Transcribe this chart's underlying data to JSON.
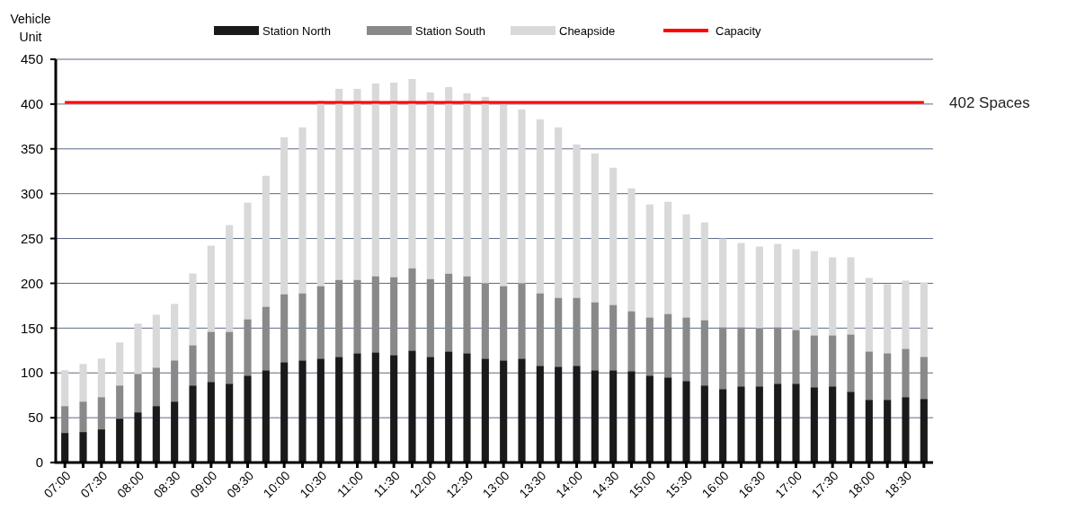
{
  "chart_data": {
    "type": "bar",
    "stacked": true,
    "ylabel": "Vehicle Unit",
    "categories": [
      "07:00",
      null,
      "07:30",
      null,
      "08:00",
      null,
      "08:30",
      null,
      "09:00",
      null,
      "09:30",
      null,
      "10:00",
      null,
      "10:30",
      null,
      "11:00",
      null,
      "11:30",
      null,
      "12:00",
      null,
      "12:30",
      null,
      "13:00",
      null,
      "13:30",
      null,
      "14:00",
      null,
      "14:30",
      null,
      "15:00",
      null,
      "15:30",
      null,
      "16:00",
      null,
      "16:30",
      null,
      "17:00",
      null,
      "17:30",
      null,
      "18:00",
      null,
      "18:30",
      null
    ],
    "series": [
      {
        "name": "Station North",
        "color": "#1a1a1a",
        "values": [
          33,
          34,
          37,
          49,
          56,
          63,
          68,
          86,
          90,
          88,
          97,
          103,
          112,
          114,
          116,
          118,
          122,
          123,
          120,
          125,
          118,
          124,
          122,
          116,
          114,
          116,
          108,
          107,
          108,
          103,
          103,
          102,
          97,
          95,
          91,
          86,
          82,
          85,
          85,
          88,
          88,
          84,
          85,
          79,
          70,
          70,
          73,
          71
        ]
      },
      {
        "name": "Station South",
        "color": "#898989",
        "values": [
          30,
          34,
          36,
          37,
          43,
          43,
          46,
          45,
          56,
          58,
          63,
          71,
          76,
          75,
          81,
          86,
          82,
          85,
          87,
          92,
          87,
          87,
          86,
          84,
          83,
          84,
          81,
          77,
          76,
          76,
          73,
          67,
          65,
          71,
          71,
          73,
          69,
          66,
          65,
          63,
          60,
          58,
          57,
          64,
          54,
          52,
          54,
          47
        ]
      },
      {
        "name": "Cheapside",
        "color": "#d9d9d9",
        "values": [
          40,
          42,
          43,
          48,
          56,
          59,
          63,
          80,
          96,
          119,
          130,
          146,
          175,
          185,
          207,
          213,
          213,
          215,
          217,
          211,
          208,
          208,
          204,
          208,
          202,
          194,
          194,
          190,
          171,
          166,
          153,
          137,
          126,
          125,
          115,
          109,
          99,
          94,
          91,
          93,
          90,
          94,
          87,
          86,
          82,
          77,
          76,
          83
        ]
      },
      {
        "name": "Capacity",
        "type": "line",
        "color": "#ff0000",
        "values": [
          402,
          402,
          402,
          402,
          402,
          402,
          402,
          402,
          402,
          402,
          402,
          402,
          402,
          402,
          402,
          402,
          402,
          402,
          402,
          402,
          402,
          402,
          402,
          402,
          402,
          402,
          402,
          402,
          402,
          402,
          402,
          402,
          402,
          402,
          402,
          402,
          402,
          402,
          402,
          402,
          402,
          402,
          402,
          402,
          402,
          402,
          402,
          402
        ]
      }
    ],
    "annotations": [
      "402 Spaces"
    ],
    "ylim": [
      0,
      450
    ],
    "yticks": [
      0,
      50,
      100,
      150,
      200,
      250,
      300,
      350,
      400,
      450
    ],
    "grid": "y",
    "legend": "top"
  }
}
